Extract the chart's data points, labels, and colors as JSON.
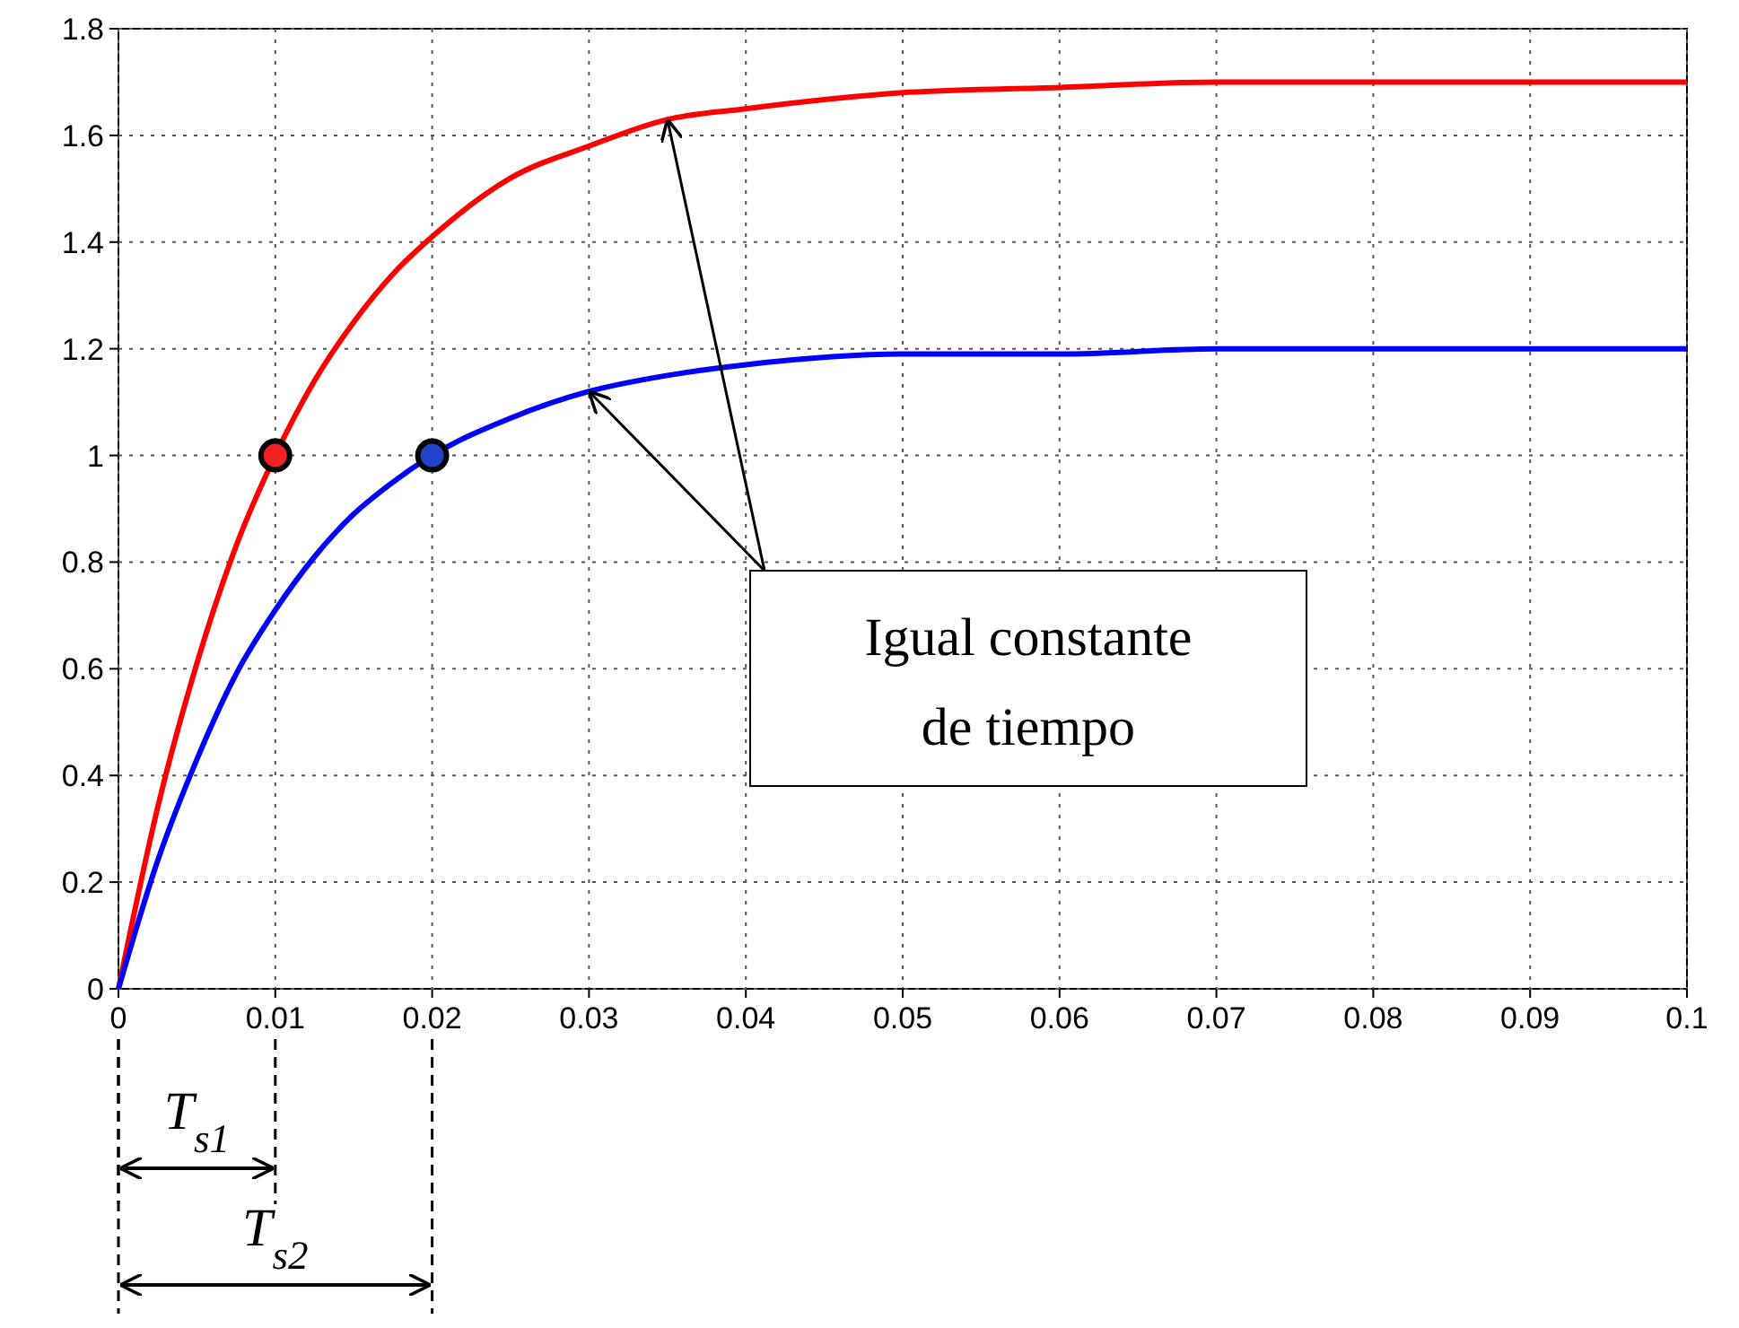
{
  "chart_data": {
    "type": "line",
    "x": [
      0,
      0.0025,
      0.005,
      0.0075,
      0.01,
      0.0125,
      0.015,
      0.0175,
      0.02,
      0.025,
      0.03,
      0.035,
      0.04,
      0.05,
      0.06,
      0.07,
      0.08,
      0.09,
      0.1
    ],
    "series": [
      {
        "color": "#ff0000",
        "values": [
          0,
          0.34,
          0.61,
          0.83,
          1.0,
          1.14,
          1.25,
          1.34,
          1.41,
          1.52,
          1.58,
          1.63,
          1.65,
          1.68,
          1.69,
          1.7,
          1.7,
          1.7,
          1.7
        ]
      },
      {
        "color": "#0000ff",
        "values": [
          0,
          0.24,
          0.43,
          0.59,
          0.71,
          0.81,
          0.89,
          0.95,
          1.0,
          1.07,
          1.12,
          1.15,
          1.17,
          1.19,
          1.19,
          1.2,
          1.2,
          1.2,
          1.2
        ]
      },
      {
        "type": "scatter",
        "color": "#ee2222",
        "x": [
          0.01
        ],
        "values": [
          1
        ],
        "marker": "circle"
      },
      {
        "type": "scatter",
        "color": "#2244cc",
        "x": [
          0.02
        ],
        "values": [
          1
        ],
        "marker": "circle"
      }
    ],
    "xlim": [
      0,
      0.1
    ],
    "xticks": [
      0,
      0.01,
      0.02,
      0.03,
      0.04,
      0.05,
      0.06,
      0.07,
      0.08,
      0.09,
      0.1
    ],
    "ylim": [
      0,
      1.8
    ],
    "yticks": [
      0,
      0.2,
      0.4,
      0.6,
      0.8,
      1,
      1.2,
      1.4,
      1.6,
      1.8
    ],
    "grid": true,
    "line_style": "solid",
    "annotations": [
      "Igual constante de tiempo",
      "T$_{s1}$",
      "T$_{s2}$"
    ]
  }
}
